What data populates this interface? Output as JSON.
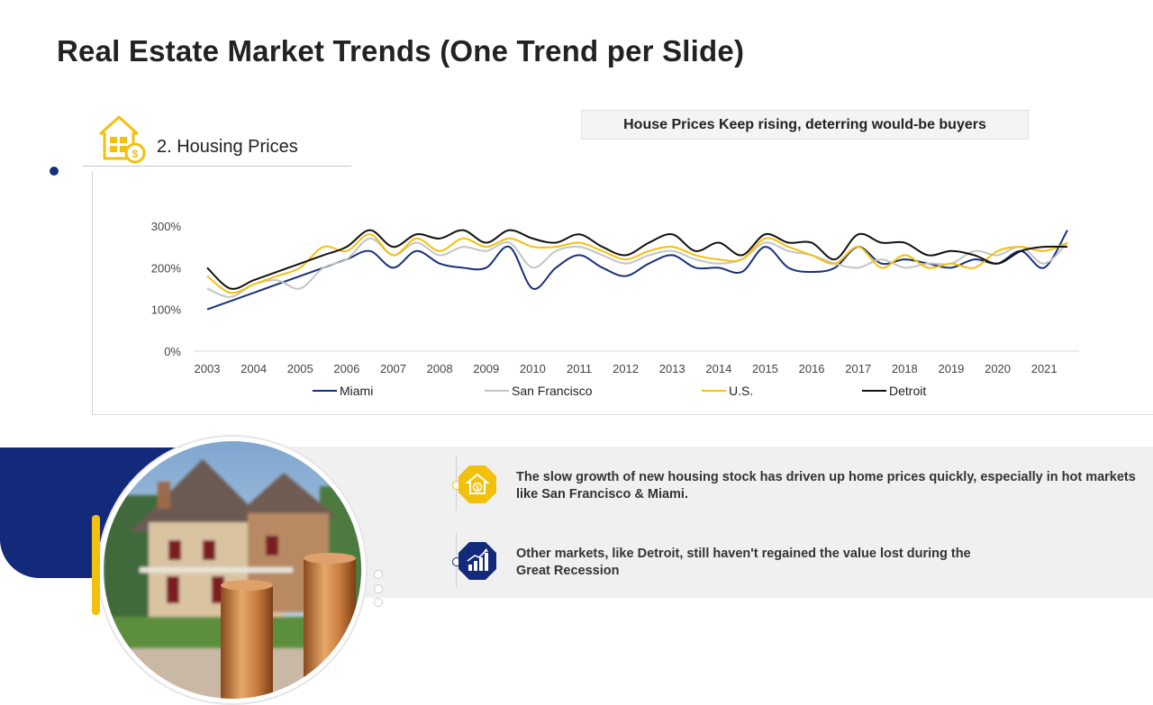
{
  "page": {
    "title": "Real Estate Market Trends (One Trend per Slide)"
  },
  "section": {
    "label": "2. Housing Prices",
    "icon": "house-dollar-icon"
  },
  "colors": {
    "navy": "#13297a",
    "yellow": "#f2c10e",
    "miami": "#17307a",
    "san_francisco": "#c4c4c4",
    "us": "#f2c10e",
    "detroit": "#111111"
  },
  "chart_data": {
    "type": "line",
    "title": "House Prices Keep rising, deterring would-be buyers",
    "xlabel": "",
    "ylabel": "",
    "ylim": [
      0,
      300
    ],
    "y_ticks": [
      "0%",
      "100%",
      "200%",
      "300%"
    ],
    "x_ticks": [
      "2003",
      "2004",
      "2005",
      "2006",
      "2007",
      "2008",
      "2009",
      "2010",
      "2011",
      "2012",
      "2013",
      "2014",
      "2015",
      "2016",
      "2017",
      "2018",
      "2019",
      "2020",
      "2021"
    ],
    "x": [
      2003,
      2003.5,
      2004,
      2004.5,
      2005,
      2005.5,
      2006,
      2006.5,
      2007,
      2007.5,
      2008,
      2008.5,
      2009,
      2009.5,
      2010,
      2010.5,
      2011,
      2011.5,
      2012,
      2012.5,
      2013,
      2013.5,
      2014,
      2014.5,
      2015,
      2015.5,
      2016,
      2016.5,
      2017,
      2017.5,
      2018,
      2018.5,
      2019,
      2019.5,
      2020,
      2020.5,
      2021,
      2021.5
    ],
    "legend_position": "bottom",
    "grid": false,
    "series": [
      {
        "name": "Miami",
        "color": "#17307a",
        "values": [
          100,
          120,
          140,
          160,
          180,
          200,
          220,
          240,
          200,
          240,
          210,
          200,
          200,
          250,
          150,
          200,
          230,
          200,
          180,
          210,
          230,
          200,
          200,
          190,
          250,
          200,
          190,
          200,
          250,
          210,
          220,
          210,
          200,
          220,
          210,
          240,
          200,
          290
        ]
      },
      {
        "name": "San Francisco",
        "color": "#c4c4c4",
        "values": [
          150,
          130,
          160,
          170,
          150,
          200,
          220,
          270,
          230,
          260,
          230,
          250,
          240,
          260,
          200,
          240,
          250,
          230,
          210,
          230,
          240,
          220,
          210,
          220,
          260,
          240,
          230,
          210,
          200,
          220,
          200,
          210,
          210,
          240,
          230,
          250,
          210,
          260
        ]
      },
      {
        "name": "U.S.",
        "color": "#f2c10e",
        "values": [
          180,
          140,
          160,
          180,
          200,
          250,
          240,
          280,
          230,
          270,
          240,
          270,
          250,
          270,
          250,
          250,
          260,
          240,
          220,
          240,
          250,
          230,
          220,
          220,
          270,
          250,
          230,
          210,
          250,
          200,
          230,
          200,
          210,
          200,
          240,
          250,
          240,
          260
        ]
      },
      {
        "name": "Detroit",
        "color": "#111111",
        "values": [
          200,
          150,
          170,
          190,
          210,
          230,
          250,
          290,
          250,
          280,
          270,
          290,
          260,
          290,
          270,
          260,
          280,
          250,
          230,
          260,
          280,
          240,
          260,
          230,
          280,
          260,
          260,
          220,
          280,
          260,
          260,
          230,
          240,
          230,
          210,
          240,
          250,
          250
        ]
      }
    ]
  },
  "bullets": [
    {
      "icon": "dollar-house-icon",
      "text_line1": "The slow growth of new housing stock has driven up home prices quickly, especially in hot markets",
      "text_line2": "like San Francisco & Miami."
    },
    {
      "icon": "rising-bars-icon",
      "text_line1": "Other markets, like Detroit, still haven't regained the value lost during the",
      "text_line2": "Great Recession"
    }
  ]
}
